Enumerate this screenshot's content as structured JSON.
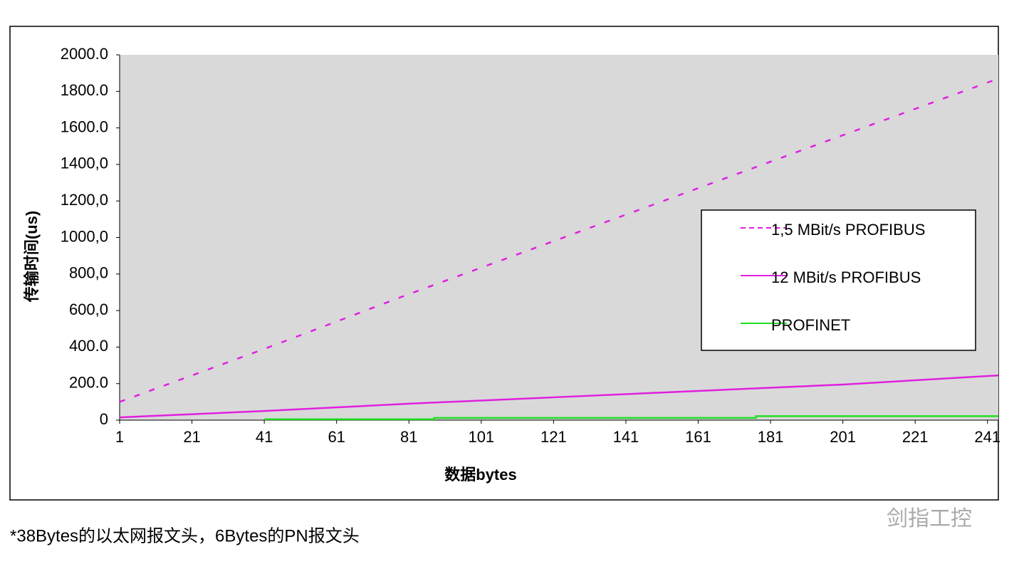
{
  "chart_data": {
    "type": "line",
    "y_axis_label": "传输时间(us)",
    "x_axis_label": "数据bytes",
    "xlim": [
      1,
      244
    ],
    "xticks": [
      1,
      21,
      41,
      61,
      81,
      101,
      121,
      141,
      161,
      181,
      201,
      221,
      241
    ],
    "ylim": [
      0,
      2000
    ],
    "yticks": [
      {
        "value": 0,
        "label": "0"
      },
      {
        "value": 200,
        "label": "200.0"
      },
      {
        "value": 400,
        "label": "400.0"
      },
      {
        "value": 600,
        "label": "600,0"
      },
      {
        "value": 800,
        "label": "800,0"
      },
      {
        "value": 1000,
        "label": "1000,0"
      },
      {
        "value": 1200,
        "label": "1200,0"
      },
      {
        "value": 1400,
        "label": "1400,0"
      },
      {
        "value": 1600,
        "label": "1600.0"
      },
      {
        "value": 1800,
        "label": "1800.0"
      },
      {
        "value": 2000,
        "label": "2000.0"
      }
    ],
    "series": [
      {
        "name": "1,5 MBit/s PROFIBUS",
        "color": "#e020e0",
        "style": "dashed",
        "x": [
          1,
          41,
          81,
          121,
          161,
          201,
          244
        ],
        "values": [
          100,
          390,
          690,
          980,
          1270,
          1560,
          1870
        ]
      },
      {
        "name": "12 MBit/s PROFIBUS",
        "color": "#e020e0",
        "style": "solid",
        "x": [
          1,
          41,
          81,
          121,
          161,
          201,
          244
        ],
        "values": [
          15,
          50,
          90,
          125,
          160,
          195,
          245
        ]
      },
      {
        "name": "PROFINET",
        "color": "#22dd22",
        "style": "solid",
        "x": [
          41,
          88,
          88,
          177,
          177,
          244
        ],
        "values": [
          5,
          5,
          12,
          12,
          22,
          22
        ]
      }
    ],
    "footnote": "*38Bytes的以太网报文头，6Bytes的PN报文头",
    "watermark": "剑指工控"
  }
}
